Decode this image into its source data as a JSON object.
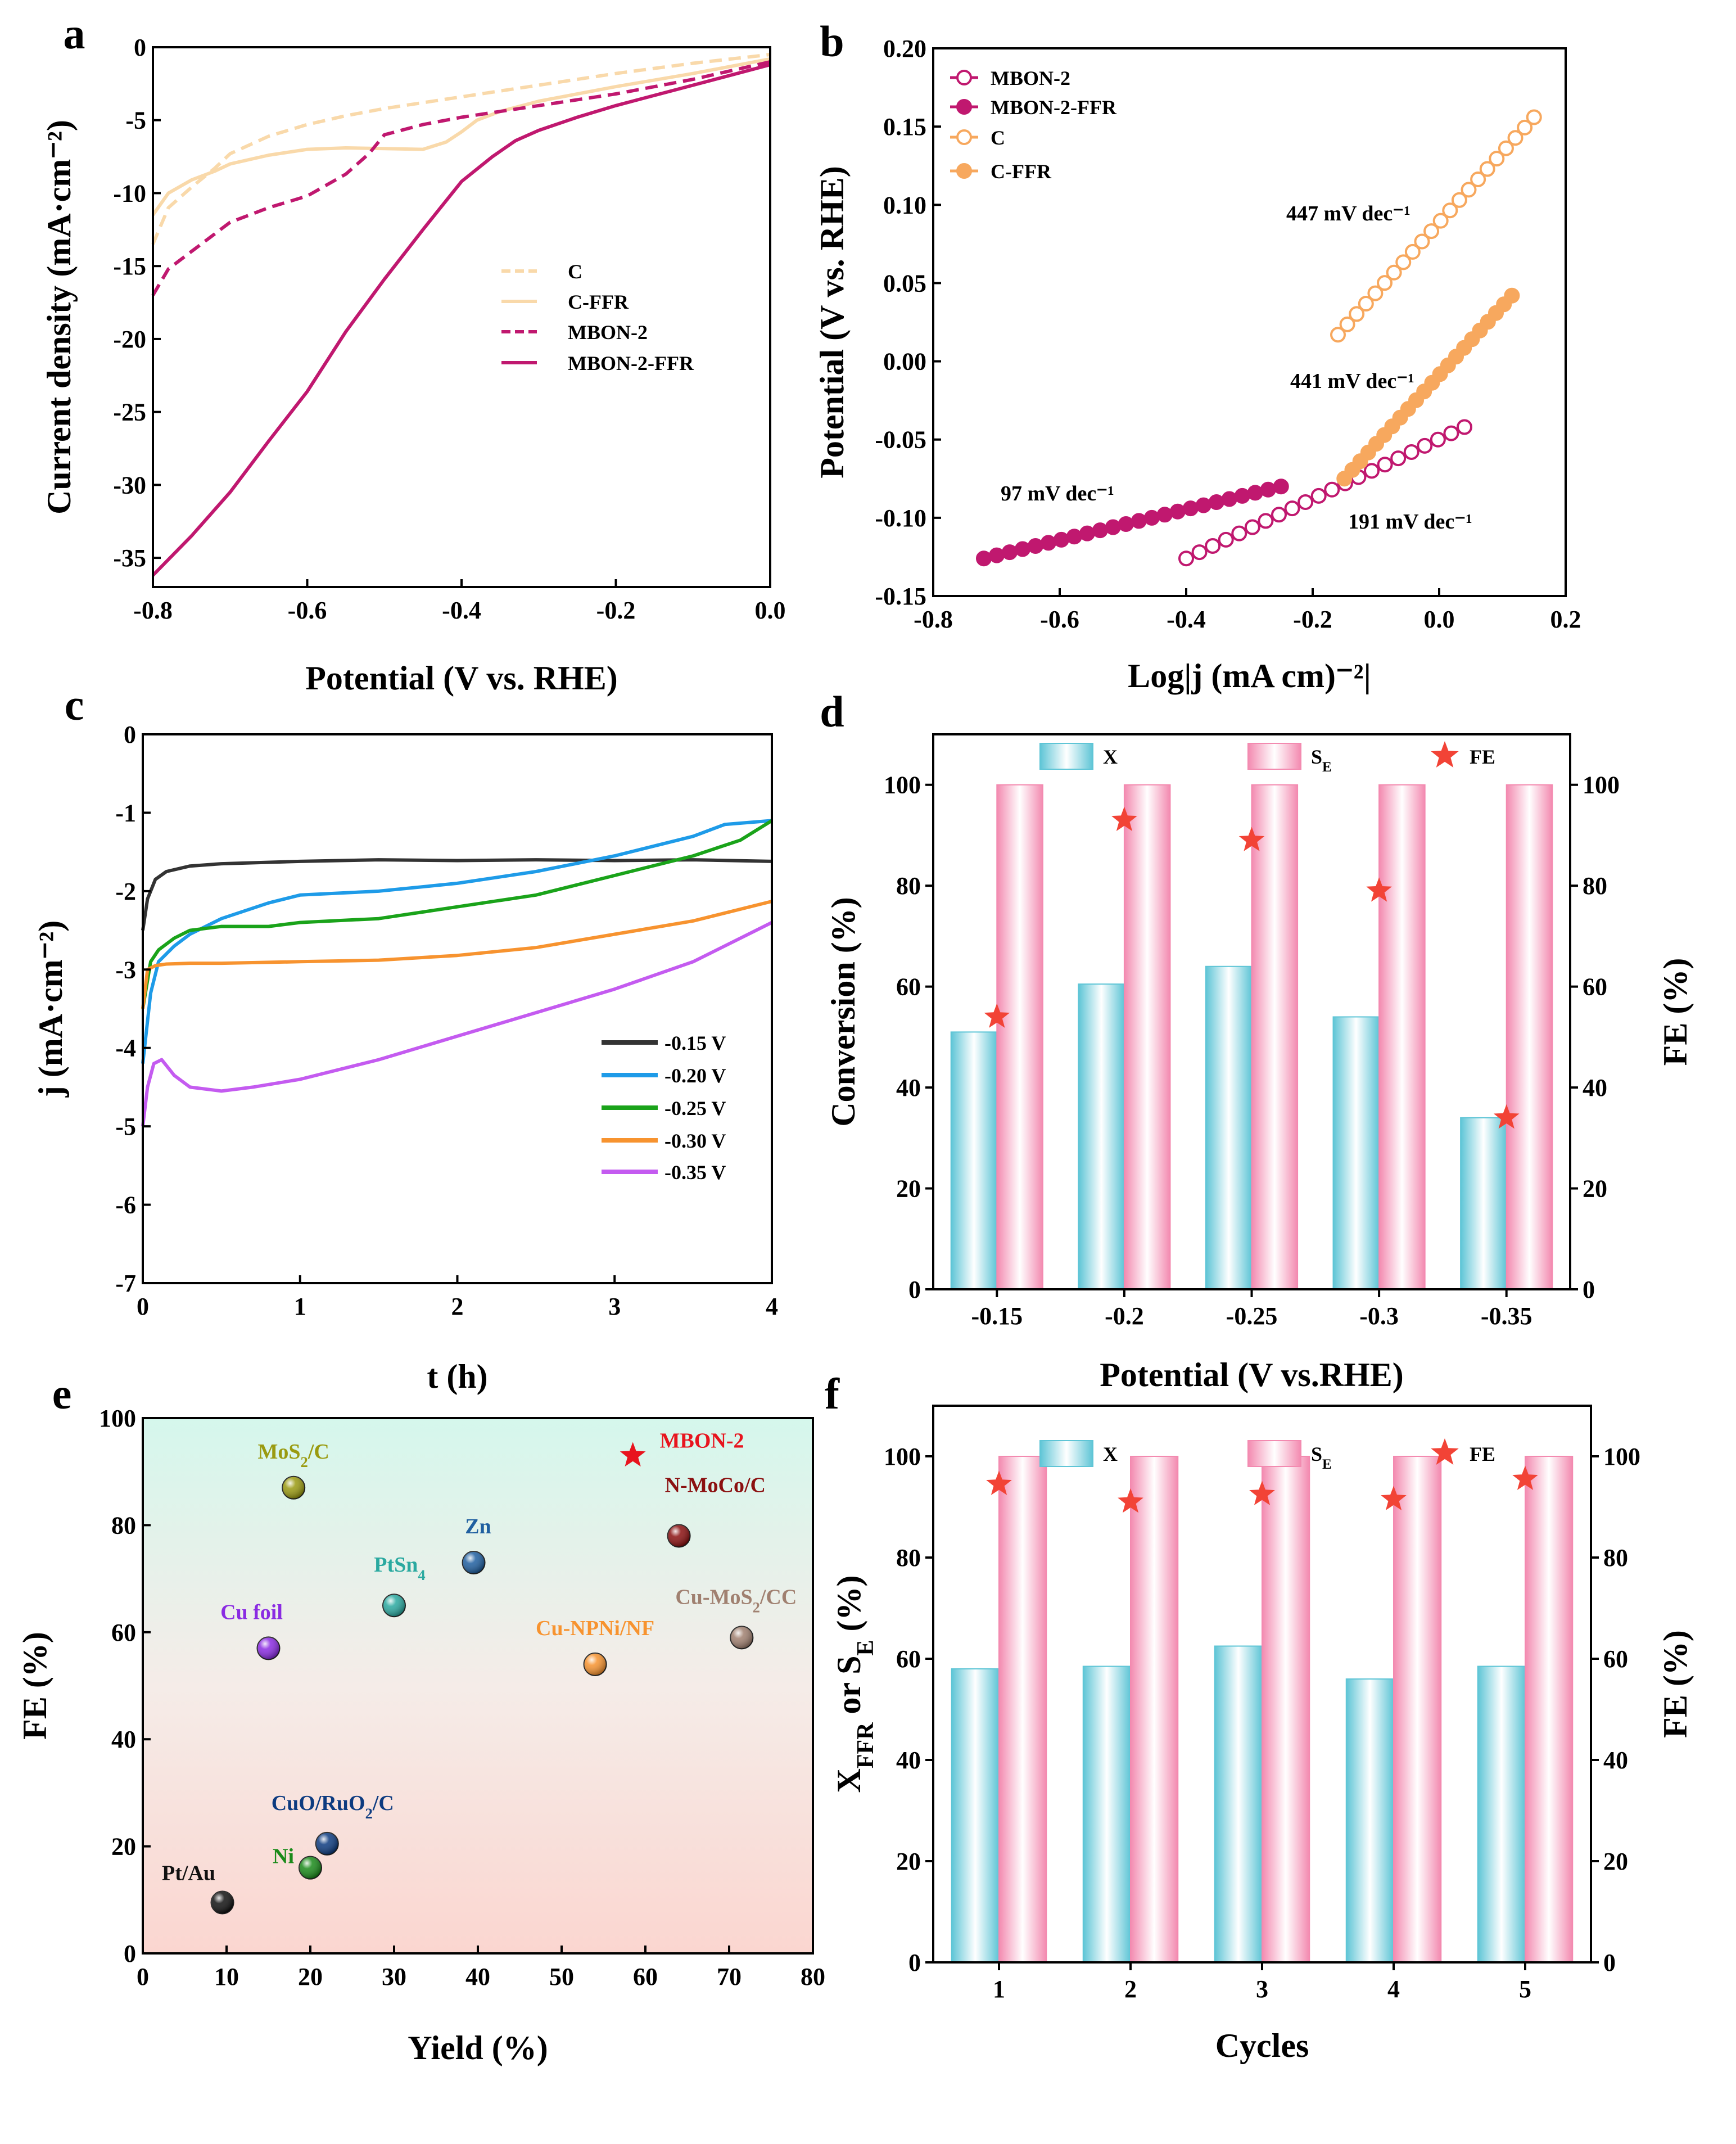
{
  "colors": {
    "C": "#f9d9aa",
    "C_FFR": "#f9d9aa",
    "MBON": "#c0186f",
    "orange": "#f7a85e",
    "black": "#333333",
    "blue": "#1e9be8",
    "green": "#1aa31a",
    "orangeCT": "#f7932f",
    "purple": "#c45bf0",
    "barX": "#7fd4e0",
    "barS": "#f7a7c4",
    "star": "#f24336"
  },
  "chart_data": [
    {
      "panel": "a",
      "type": "line",
      "xlabel": "Potential (V vs. RHE)",
      "ylabel": "Current density (mA·cm⁻²)",
      "xlim": [
        -0.8,
        0.0
      ],
      "ylim": [
        -37,
        0
      ],
      "xticks": [
        "-0.8",
        "-0.6",
        "-0.4",
        "-0.2",
        "0.0"
      ],
      "yticks": [
        "0",
        "-5",
        "-10",
        "-15",
        "-20",
        "-25",
        "-30",
        "-35"
      ],
      "legend": [
        "C",
        "C-FFR",
        "MBON-2",
        "MBON-2-FFR"
      ],
      "series": [
        {
          "name": "C",
          "style": "dashed",
          "color": "#f9d9aa",
          "x": [
            -0.8,
            -0.78,
            -0.75,
            -0.72,
            -0.7,
            -0.65,
            -0.6,
            -0.55,
            -0.5,
            -0.45,
            -0.4,
            -0.35,
            -0.3,
            -0.2,
            -0.1,
            0.0
          ],
          "y": [
            -13.5,
            -11.0,
            -9.6,
            -8.3,
            -7.3,
            -6.1,
            -5.3,
            -4.7,
            -4.2,
            -3.8,
            -3.4,
            -3.0,
            -2.6,
            -1.8,
            -1.1,
            -0.5
          ]
        },
        {
          "name": "C-FFR",
          "style": "solid",
          "color": "#f9d9aa",
          "x": [
            -0.8,
            -0.78,
            -0.75,
            -0.72,
            -0.7,
            -0.65,
            -0.6,
            -0.55,
            -0.5,
            -0.45,
            -0.42,
            -0.4,
            -0.38,
            -0.35,
            -0.3,
            -0.2,
            -0.1,
            0.0
          ],
          "y": [
            -11.5,
            -10.0,
            -9.1,
            -8.5,
            -8.0,
            -7.4,
            -7.0,
            -6.9,
            -6.95,
            -7.0,
            -6.5,
            -5.8,
            -5.0,
            -4.4,
            -3.7,
            -2.7,
            -1.8,
            -0.8
          ]
        },
        {
          "name": "MBON-2",
          "style": "dashed",
          "color": "#c0186f",
          "x": [
            -0.8,
            -0.78,
            -0.75,
            -0.72,
            -0.7,
            -0.65,
            -0.6,
            -0.55,
            -0.52,
            -0.5,
            -0.45,
            -0.4,
            -0.35,
            -0.3,
            -0.2,
            -0.1,
            0.0
          ],
          "y": [
            -17.0,
            -15.2,
            -14.0,
            -12.8,
            -12.0,
            -11.0,
            -10.2,
            -8.7,
            -7.3,
            -6.0,
            -5.3,
            -4.8,
            -4.4,
            -4.0,
            -3.2,
            -2.2,
            -1.0
          ]
        },
        {
          "name": "MBON-2-FFR",
          "style": "solid",
          "color": "#c0186f",
          "x": [
            -0.8,
            -0.75,
            -0.7,
            -0.65,
            -0.6,
            -0.55,
            -0.5,
            -0.45,
            -0.4,
            -0.36,
            -0.33,
            -0.3,
            -0.25,
            -0.2,
            -0.15,
            -0.1,
            -0.05,
            0.0
          ],
          "y": [
            -36.2,
            -33.5,
            -30.5,
            -27.0,
            -23.6,
            -19.5,
            -15.9,
            -12.5,
            -9.2,
            -7.5,
            -6.4,
            -5.7,
            -4.8,
            -4.0,
            -3.3,
            -2.6,
            -1.9,
            -1.2
          ]
        }
      ]
    },
    {
      "panel": "b",
      "type": "scatter",
      "xlabel": "Log|j (mA cm)⁻²|",
      "ylabel": "Potential (V vs. RHE)",
      "xlim": [
        -0.8,
        0.2
      ],
      "ylim": [
        -0.15,
        0.2
      ],
      "xticks": [
        "-0.8",
        "-0.6",
        "-0.4",
        "-0.2",
        "0.0",
        "0.2"
      ],
      "yticks": [
        "0.20",
        "0.15",
        "0.10",
        "0.05",
        "0.00",
        "-0.05",
        "-0.10",
        "-0.15"
      ],
      "legend": [
        "MBON-2",
        "MBON-2-FFR",
        "C",
        "C-FFR"
      ],
      "series": [
        {
          "name": "MBON-2",
          "marker": "open",
          "color": "#c0186f",
          "x_range": [
            -0.4,
            0.04
          ],
          "y_range": [
            -0.126,
            -0.042
          ],
          "n": 22
        },
        {
          "name": "MBON-2-FFR",
          "marker": "filled",
          "color": "#c0186f",
          "x_range": [
            -0.72,
            -0.25
          ],
          "y_range": [
            -0.126,
            -0.08
          ],
          "n": 24
        },
        {
          "name": "C",
          "marker": "open",
          "color": "#f7a85e",
          "x_range": [
            -0.16,
            0.15
          ],
          "y_range": [
            0.017,
            0.156
          ],
          "n": 22
        },
        {
          "name": "C-FFR",
          "marker": "filled",
          "color": "#f7a85e",
          "x_range": [
            -0.15,
            0.115
          ],
          "y_range": [
            -0.075,
            0.042
          ],
          "n": 22
        }
      ],
      "annotations": [
        "447 mV dec⁻¹",
        "441 mV dec⁻¹",
        "97 mV dec⁻¹",
        "191 mV dec⁻¹"
      ]
    },
    {
      "panel": "c",
      "type": "line",
      "xlabel": "t (h)",
      "ylabel": "j (mA·cm⁻²)",
      "xlim": [
        0,
        4
      ],
      "ylim": [
        -7,
        0
      ],
      "xticks": [
        "0",
        "1",
        "2",
        "3",
        "4"
      ],
      "yticks": [
        "0",
        "-1",
        "-2",
        "-3",
        "-4",
        "-5",
        "-6",
        "-7"
      ],
      "legend": [
        "-0.15 V",
        "-0.20 V",
        "-0.25 V",
        "-0.30 V",
        "-0.35 V"
      ],
      "series": [
        {
          "name": "-0.15 V",
          "color": "#333333",
          "x": [
            0,
            0.03,
            0.08,
            0.15,
            0.3,
            0.5,
            1.0,
            1.5,
            2.0,
            2.5,
            3.0,
            3.5,
            4.0
          ],
          "y": [
            -2.5,
            -2.1,
            -1.85,
            -1.75,
            -1.68,
            -1.65,
            -1.62,
            -1.6,
            -1.61,
            -1.6,
            -1.61,
            -1.6,
            -1.62
          ]
        },
        {
          "name": "-0.20 V",
          "color": "#1e9be8",
          "x": [
            0,
            0.05,
            0.1,
            0.2,
            0.3,
            0.5,
            0.8,
            1.0,
            1.5,
            2.0,
            2.5,
            3.0,
            3.5,
            3.7,
            4.0
          ],
          "y": [
            -4.2,
            -3.3,
            -2.9,
            -2.7,
            -2.55,
            -2.35,
            -2.15,
            -2.05,
            -2.0,
            -1.9,
            -1.75,
            -1.55,
            -1.3,
            -1.15,
            -1.1
          ]
        },
        {
          "name": "-0.25 V",
          "color": "#1aa31a",
          "x": [
            0,
            0.05,
            0.1,
            0.2,
            0.3,
            0.5,
            0.8,
            1.0,
            1.5,
            2.0,
            2.5,
            3.0,
            3.5,
            3.8,
            4.0
          ],
          "y": [
            -3.5,
            -2.9,
            -2.75,
            -2.6,
            -2.5,
            -2.45,
            -2.45,
            -2.4,
            -2.35,
            -2.2,
            -2.05,
            -1.8,
            -1.55,
            -1.35,
            -1.1
          ]
        },
        {
          "name": "-0.30 V",
          "color": "#f7932f",
          "x": [
            0,
            0.03,
            0.08,
            0.15,
            0.3,
            0.5,
            1.0,
            1.5,
            2.0,
            2.5,
            3.0,
            3.5,
            4.0
          ],
          "y": [
            -3.5,
            -3.0,
            -2.95,
            -2.93,
            -2.92,
            -2.92,
            -2.9,
            -2.88,
            -2.82,
            -2.72,
            -2.55,
            -2.38,
            -2.13
          ]
        },
        {
          "name": "-0.35 V",
          "color": "#c45bf0",
          "x": [
            0,
            0.03,
            0.07,
            0.12,
            0.2,
            0.3,
            0.5,
            0.7,
            1.0,
            1.5,
            2.0,
            2.5,
            3.0,
            3.5,
            4.0
          ],
          "y": [
            -5.0,
            -4.5,
            -4.2,
            -4.15,
            -4.35,
            -4.5,
            -4.55,
            -4.5,
            -4.4,
            -4.15,
            -3.85,
            -3.55,
            -3.25,
            -2.9,
            -2.4
          ]
        }
      ]
    },
    {
      "panel": "d",
      "type": "bar",
      "xlabel": "Potential (V vs.RHE)",
      "ylabel": "Conversion (%)",
      "y2label": "FE (%)",
      "categories": [
        "-0.15",
        "-0.2",
        "-0.25",
        "-0.3",
        "-0.35"
      ],
      "ylim": [
        0,
        110
      ],
      "yticks": [
        "0",
        "20",
        "40",
        "60",
        "80",
        "100"
      ],
      "legend": [
        "X",
        "S",
        "FE"
      ],
      "legend_sub": "E",
      "series": [
        {
          "name": "X",
          "values": [
            51,
            60.5,
            64,
            54,
            34
          ]
        },
        {
          "name": "SE",
          "values": [
            100,
            100,
            100,
            100,
            100
          ]
        },
        {
          "name": "FE",
          "values": [
            54,
            93,
            89,
            79,
            34
          ]
        }
      ]
    },
    {
      "panel": "e",
      "type": "scatter",
      "xlabel": "Yield (%)",
      "ylabel": "FE (%)",
      "xlim": [
        0,
        80
      ],
      "ylim": [
        0,
        100
      ],
      "xticks": [
        "0",
        "10",
        "20",
        "30",
        "40",
        "50",
        "60",
        "70",
        "80"
      ],
      "yticks": [
        "0",
        "20",
        "40",
        "60",
        "80",
        "100"
      ],
      "points": [
        {
          "label": "MBON-2",
          "x": 58.5,
          "y": 93,
          "color": "#e8141e",
          "marker": "star"
        },
        {
          "label": "MoS",
          "sub": "2",
          "after": "/C",
          "x": 18,
          "y": 87,
          "color": "#9a9a10"
        },
        {
          "label": "N-MoCo/C",
          "x": 64,
          "y": 78,
          "color": "#8b1010"
        },
        {
          "label": "Zn",
          "x": 39.5,
          "y": 73,
          "color": "#1f5fa0"
        },
        {
          "label": "PtSn",
          "sub": "4",
          "after": "",
          "x": 30,
          "y": 65,
          "color": "#2aa9a0"
        },
        {
          "label": "Cu foil",
          "x": 15,
          "y": 57,
          "color": "#8a2be2"
        },
        {
          "label": "Cu-NPNi/NF",
          "x": 54,
          "y": 54,
          "color": "#f7932f"
        },
        {
          "label": "Cu-MoS",
          "sub": "2",
          "after": "/CC",
          "x": 71.5,
          "y": 59,
          "color": "#a08070"
        },
        {
          "label": "CuO/RuO",
          "sub": "2",
          "after": "/C",
          "x": 22,
          "y": 20.5,
          "color": "#0d3b80"
        },
        {
          "label": "Ni",
          "x": 20,
          "y": 16,
          "color": "#1a8a1a"
        },
        {
          "label": "Pt/Au",
          "x": 9.5,
          "y": 9.5,
          "color": "#111111"
        }
      ]
    },
    {
      "panel": "f",
      "type": "bar",
      "xlabel": "Cycles",
      "ylabel": "X",
      "ylabel_sub": "FFR",
      "ylabel_mid": " or S",
      "ylabel_sub2": "E",
      "ylabel_end": " (%)",
      "y2label": "FE (%)",
      "categories": [
        "1",
        "2",
        "3",
        "4",
        "5"
      ],
      "ylim": [
        0,
        110
      ],
      "yticks": [
        "0",
        "20",
        "40",
        "60",
        "80",
        "100"
      ],
      "legend": [
        "X",
        "S",
        "FE"
      ],
      "legend_sub": "E",
      "series": [
        {
          "name": "X",
          "values": [
            58,
            58.5,
            62.5,
            56,
            58.5
          ]
        },
        {
          "name": "SE",
          "values": [
            100,
            100,
            100,
            100,
            100
          ]
        },
        {
          "name": "FE",
          "values": [
            94.5,
            91,
            92.5,
            91.5,
            95.5
          ]
        }
      ]
    }
  ],
  "panel_labels": [
    "a",
    "b",
    "c",
    "d",
    "e",
    "f"
  ]
}
